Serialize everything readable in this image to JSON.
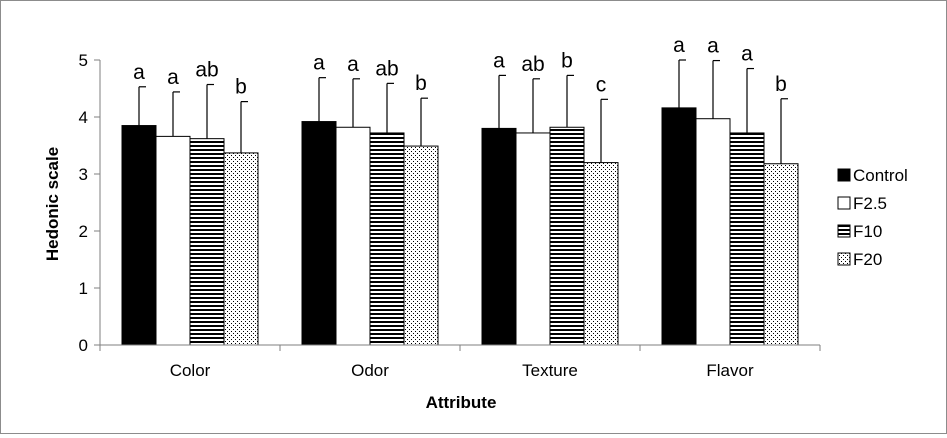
{
  "chart_data": {
    "type": "bar",
    "xlabel": "Attribute",
    "ylabel": "Hedonic scale",
    "ylim": [
      0,
      5
    ],
    "yticks": [
      "0",
      "1",
      "2",
      "3",
      "4",
      "5"
    ],
    "categories": [
      "Color",
      "Odor",
      "Texture",
      "Flavor"
    ],
    "grid": false,
    "legend_position": "right",
    "series": [
      {
        "name": "Control",
        "pattern": "solid-black",
        "values": [
          3.85,
          3.92,
          3.8,
          4.16
        ],
        "errors": [
          0.68,
          0.77,
          0.93,
          0.84
        ],
        "letters": [
          "a",
          "a",
          "a",
          "a"
        ]
      },
      {
        "name": "F2.5",
        "pattern": "white",
        "values": [
          3.66,
          3.82,
          3.72,
          3.97
        ],
        "errors": [
          0.78,
          0.85,
          0.95,
          1.02
        ],
        "letters": [
          "a",
          "a",
          "ab",
          "a"
        ]
      },
      {
        "name": "F10",
        "pattern": "horizontal-stripes",
        "values": [
          3.62,
          3.72,
          3.82,
          3.72
        ],
        "errors": [
          0.95,
          0.87,
          0.91,
          1.13
        ],
        "letters": [
          "ab",
          "ab",
          "b",
          "a"
        ]
      },
      {
        "name": "F20",
        "pattern": "dots",
        "values": [
          3.37,
          3.49,
          3.2,
          3.18
        ],
        "errors": [
          0.9,
          0.84,
          1.11,
          1.14
        ],
        "letters": [
          "b",
          "b",
          "c",
          "b"
        ]
      }
    ]
  }
}
